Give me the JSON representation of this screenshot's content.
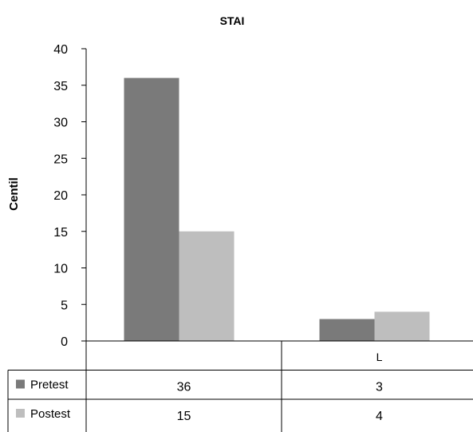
{
  "chart_data": {
    "type": "bar",
    "title": "STAI",
    "ylabel": "Centil",
    "xlabel": "",
    "categories": [
      "",
      "L"
    ],
    "ylim": [
      0,
      40
    ],
    "yticks": [
      0,
      5,
      10,
      15,
      20,
      25,
      30,
      35,
      40
    ],
    "grid": false,
    "legend": "data-table-left",
    "series": [
      {
        "name": "Pretest",
        "values": [
          36,
          3
        ],
        "color": "#7a7a7a"
      },
      {
        "name": "Postest",
        "values": [
          15,
          4
        ],
        "color": "#bebebe"
      }
    ],
    "data_table": true
  }
}
